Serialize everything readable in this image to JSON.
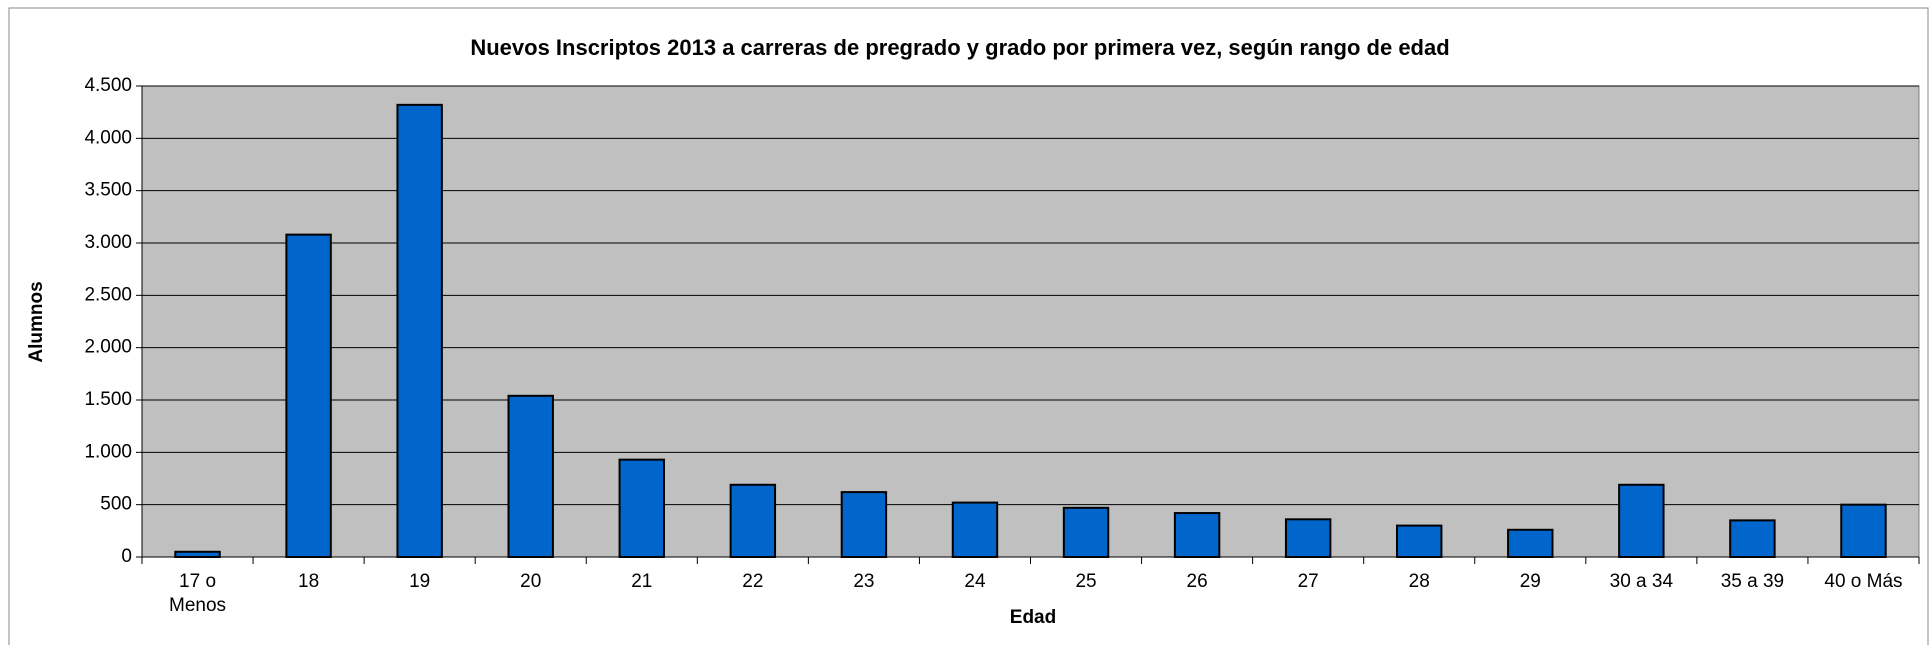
{
  "chart_data": {
    "type": "bar",
    "title": "Nuevos Inscriptos 2013 a carreras de pregrado y grado por primera vez, según rango de edad",
    "x_label": "Edad",
    "y_label": "Alumnos",
    "categories": [
      "17 o\nMenos",
      "18",
      "19",
      "20",
      "21",
      "22",
      "23",
      "24",
      "25",
      "26",
      "27",
      "28",
      "29",
      "30 a 34",
      "35 a 39",
      "40 o Más"
    ],
    "values": [
      50,
      3080,
      4320,
      1540,
      930,
      690,
      620,
      520,
      470,
      420,
      360,
      300,
      260,
      690,
      350,
      500
    ],
    "color": "#0066cc",
    "plot_background": "#c0c0c0",
    "ylim": [
      0,
      4500
    ],
    "yticks": [
      0,
      500,
      {
        "value": 1000,
        "label": "1.000"
      },
      {
        "value": 1500,
        "label": "1.500"
      },
      {
        "value": 2000,
        "label": "2.000"
      },
      {
        "value": 2500,
        "label": "2.500"
      },
      {
        "value": 3000,
        "label": "3.000"
      },
      {
        "value": 3500,
        "label": "3.500"
      },
      {
        "value": 4000,
        "label": "4.000"
      },
      {
        "value": 4500,
        "label": "4.500"
      }
    ],
    "grid": true
  }
}
